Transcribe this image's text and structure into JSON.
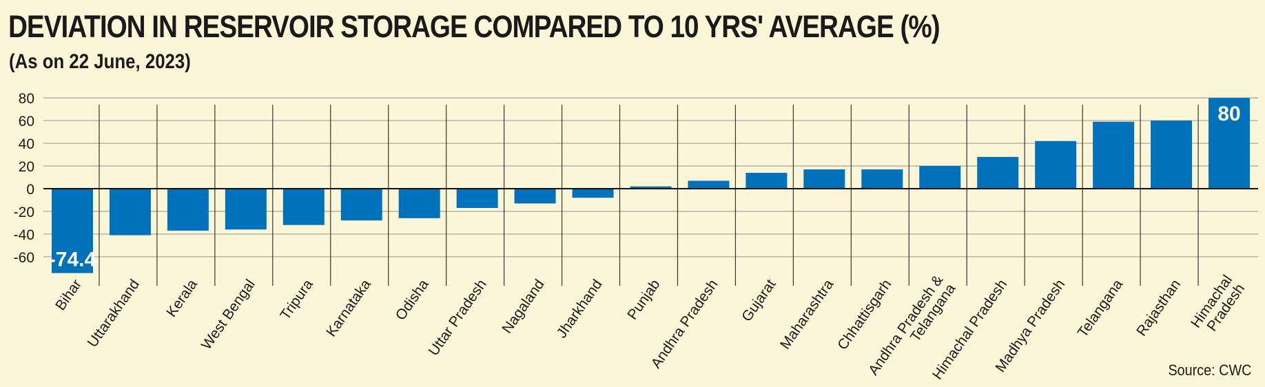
{
  "title": "DEVIATION IN RESERVOIR STORAGE COMPARED TO 10 YRS' AVERAGE (%)",
  "subtitle": "(As on 22 June, 2023)",
  "source": "Source: CWC",
  "colors": {
    "bar": "#0072bc",
    "background": "#fcf6d8",
    "grid": "#a8a8a0"
  },
  "chart_data": {
    "type": "bar",
    "title": "DEVIATION IN RESERVOIR STORAGE COMPARED TO 10 YRS' AVERAGE (%)",
    "subtitle": "(As on 22 June, 2023)",
    "xlabel": "",
    "ylabel": "",
    "ylim": [
      -74.4,
      80
    ],
    "yticks": [
      80,
      60,
      40,
      20,
      0,
      -20,
      -40,
      -60
    ],
    "grid": true,
    "categories": [
      "Bihar",
      "Uttarakhand",
      "Kerala",
      "West Bengal",
      "Tripura",
      "Karnataka",
      "Odisha",
      "Uttar Pradesh",
      "Nagaland",
      "Jharkhand",
      "Punjab",
      "Andhra Pradesh",
      "Gujarat",
      "Maharashtra",
      "Chhattisgarh",
      "Andhra Pradesh & Telangana",
      "Himachal Pradesh",
      "Madhya Pradesh",
      "Telangana",
      "Rajasthan",
      "Himachal Pradesh"
    ],
    "values": [
      -74.4,
      -41,
      -37,
      -36,
      -32,
      -28,
      -26,
      -17,
      -13,
      -8,
      2,
      7,
      14,
      17,
      17,
      20,
      28,
      42,
      59,
      60,
      80
    ],
    "data_labels": [
      {
        "index": 0,
        "text": "-74.4"
      },
      {
        "index": 20,
        "text": "80"
      }
    ]
  }
}
